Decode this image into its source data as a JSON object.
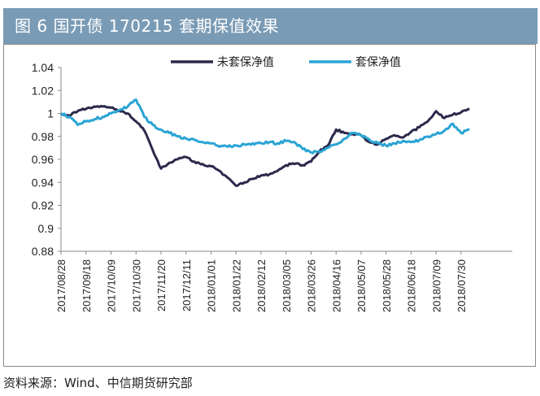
{
  "header": {
    "title": "图 6  国开债 170215 套期保值效果"
  },
  "footer": {
    "source": "资料来源：Wind、中信期货研究部"
  },
  "chart_data": {
    "type": "line",
    "title": "",
    "xlabel": "",
    "ylabel": "",
    "ylim": [
      0.88,
      1.04
    ],
    "yticks": [
      0.88,
      0.9,
      0.92,
      0.94,
      0.96,
      0.98,
      1,
      1.02,
      1.04
    ],
    "xticks": [
      "2017/08/28",
      "2017/09/18",
      "2017/10/09",
      "2017/10/30",
      "2017/11/20",
      "2017/12/11",
      "2018/01/01",
      "2018/01/22",
      "2018/02/12",
      "2018/03/05",
      "2018/03/26",
      "2018/04/16",
      "2018/05/07",
      "2018/05/28",
      "2018/06/18",
      "2018/07/09",
      "2018/07/30"
    ],
    "x": [
      "2017/08/28",
      "2017/09/04",
      "2017/09/11",
      "2017/09/18",
      "2017/09/25",
      "2017/10/02",
      "2017/10/09",
      "2017/10/16",
      "2017/10/23",
      "2017/10/30",
      "2017/11/06",
      "2017/11/13",
      "2017/11/20",
      "2017/11/27",
      "2017/12/04",
      "2017/12/11",
      "2017/12/18",
      "2017/12/25",
      "2018/01/01",
      "2018/01/08",
      "2018/01/15",
      "2018/01/22",
      "2018/01/29",
      "2018/02/05",
      "2018/02/12",
      "2018/02/19",
      "2018/02/26",
      "2018/03/05",
      "2018/03/12",
      "2018/03/19",
      "2018/03/26",
      "2018/04/02",
      "2018/04/09",
      "2018/04/16",
      "2018/04/23",
      "2018/04/30",
      "2018/05/07",
      "2018/05/14",
      "2018/05/21",
      "2018/05/28",
      "2018/06/04",
      "2018/06/11",
      "2018/06/18",
      "2018/06/25",
      "2018/07/02",
      "2018/07/09",
      "2018/07/16",
      "2018/07/23",
      "2018/07/30",
      "2018/08/06"
    ],
    "series": [
      {
        "name": "未套保净值",
        "color": "#2b2a4c",
        "values": [
          1.0,
          0.998,
          1.002,
          1.004,
          1.006,
          1.006,
          1.005,
          1.002,
          1.0,
          0.993,
          0.985,
          0.968,
          0.952,
          0.957,
          0.96,
          0.962,
          0.958,
          0.956,
          0.954,
          0.95,
          0.944,
          0.937,
          0.94,
          0.943,
          0.946,
          0.947,
          0.95,
          0.955,
          0.956,
          0.955,
          0.958,
          0.967,
          0.972,
          0.986,
          0.983,
          0.982,
          0.981,
          0.975,
          0.973,
          0.978,
          0.981,
          0.979,
          0.984,
          0.988,
          0.993,
          1.002,
          0.996,
          0.999,
          1.001,
          1.004
        ]
      },
      {
        "name": "套保净值",
        "color": "#2aa4d4",
        "values": [
          1.0,
          0.997,
          0.99,
          0.993,
          0.995,
          0.997,
          1.0,
          1.003,
          1.006,
          1.012,
          0.997,
          0.99,
          0.986,
          0.983,
          0.98,
          0.978,
          0.977,
          0.975,
          0.974,
          0.971,
          0.971,
          0.972,
          0.973,
          0.974,
          0.974,
          0.975,
          0.974,
          0.976,
          0.975,
          0.969,
          0.966,
          0.967,
          0.97,
          0.973,
          0.978,
          0.983,
          0.981,
          0.977,
          0.974,
          0.972,
          0.974,
          0.976,
          0.975,
          0.977,
          0.98,
          0.982,
          0.985,
          0.991,
          0.983,
          0.986
        ]
      }
    ],
    "legend": "top",
    "grid": false
  }
}
